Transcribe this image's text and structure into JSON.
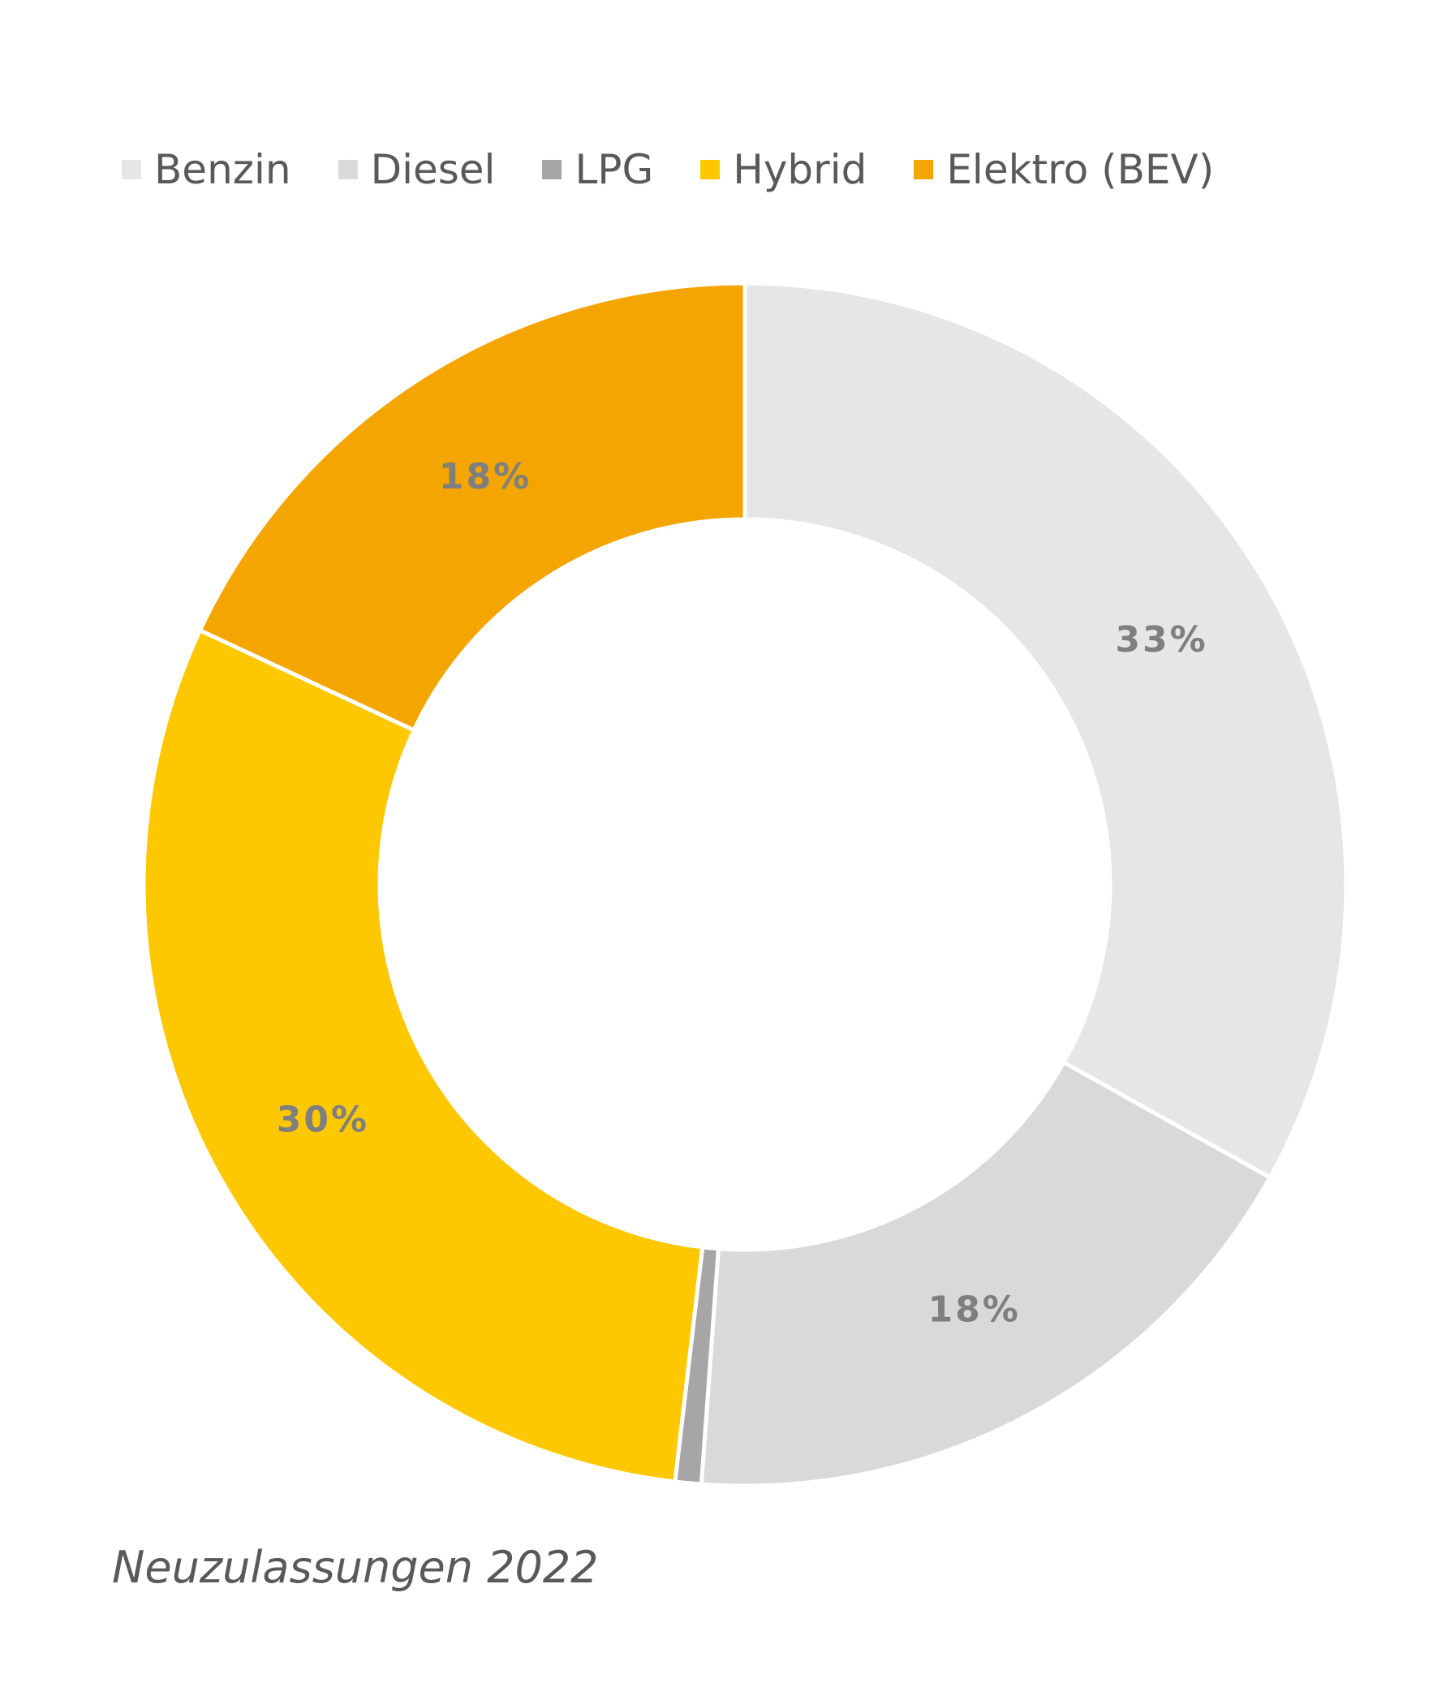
{
  "chart_data": {
    "type": "donut",
    "title": "",
    "caption": "Neuzulassungen 2022",
    "legend_position": "top-left",
    "categories": [
      "Benzin",
      "Diesel",
      "LPG",
      "Hybrid",
      "Elektro (BEV)"
    ],
    "values": [
      33,
      18,
      0.7,
      30,
      18
    ],
    "data_labels": [
      "33%",
      "18%",
      "",
      "30%",
      "18%"
    ],
    "colors": [
      "#e6e6e6",
      "#d9d9d9",
      "#a6a6a6",
      "#fdc800",
      "#f5a500"
    ]
  }
}
